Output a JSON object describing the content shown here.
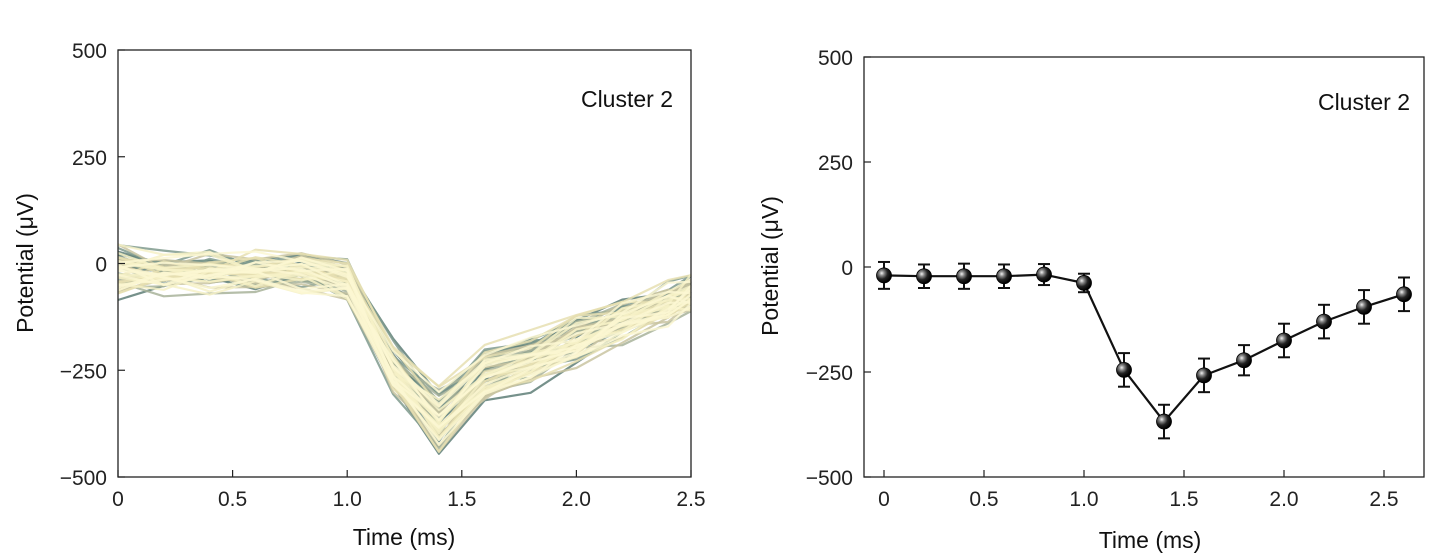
{
  "chart_data": [
    {
      "type": "line",
      "panel": "left",
      "annotation": "Cluster 2",
      "xlabel": "Time (ms)",
      "ylabel": "Potential (μV)",
      "xlim": [
        0,
        2.5
      ],
      "ylim": [
        -500,
        500
      ],
      "xticks": [
        0,
        0.5,
        1.0,
        1.5,
        2.0,
        2.5
      ],
      "xtick_labels": [
        "0",
        "0.5",
        "1.0",
        "1.5",
        "2.0",
        "2.5"
      ],
      "yticks": [
        500,
        250,
        0,
        -250,
        -500
      ],
      "ytick_labels": [
        "500",
        "250",
        "0",
        "−250",
        "−500"
      ],
      "grid": false,
      "x": [
        0,
        0.2,
        0.4,
        0.6,
        0.8,
        1.0,
        1.2,
        1.4,
        1.6,
        1.8,
        2.0,
        2.2,
        2.4,
        2.5
      ],
      "mean_waveform": [
        -20,
        -22,
        -22,
        -22,
        -18,
        -38,
        -245,
        -368,
        -258,
        -222,
        -175,
        -130,
        -95,
        -70
      ],
      "colors": [
        "#5e7e77",
        "#7f9a8d",
        "#a8b39a",
        "#c9c4a1",
        "#e6dfb2",
        "#f6f1c7",
        "#fbf7d2"
      ]
    },
    {
      "type": "line",
      "panel": "right",
      "annotation": "Cluster 2",
      "xlabel": "Time (ms)",
      "ylabel": "Potential (μV)",
      "xlim": [
        -0.1,
        2.7
      ],
      "ylim": [
        -500,
        500
      ],
      "xticks": [
        0,
        0.5,
        1.0,
        1.5,
        2.0,
        2.5
      ],
      "xtick_labels": [
        "0",
        "0.5",
        "1.0",
        "1.5",
        "2.0",
        "2.5"
      ],
      "yticks": [
        500,
        250,
        0,
        -250,
        -500
      ],
      "ytick_labels": [
        "500",
        "250",
        "0",
        "−250",
        "−500"
      ],
      "grid": false,
      "x": [
        0,
        0.2,
        0.4,
        0.6,
        0.8,
        1.0,
        1.2,
        1.4,
        1.6,
        1.8,
        2.0,
        2.2,
        2.4,
        2.6
      ],
      "y": [
        -20,
        -22,
        -22,
        -22,
        -18,
        -38,
        -245,
        -368,
        -258,
        -222,
        -175,
        -130,
        -95,
        -65
      ],
      "error": [
        32,
        28,
        30,
        28,
        25,
        22,
        40,
        40,
        40,
        36,
        40,
        40,
        40,
        40
      ],
      "color": "#111111"
    }
  ]
}
